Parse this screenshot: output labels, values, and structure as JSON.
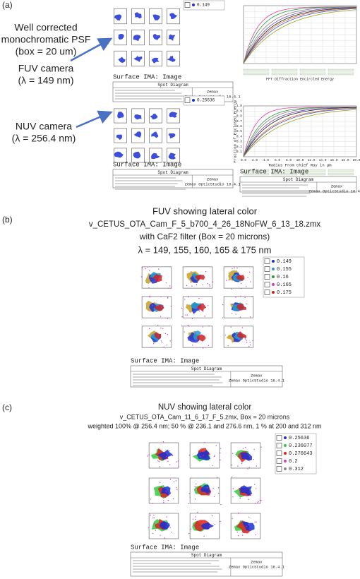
{
  "panel_a": {
    "label": "(a)",
    "psf_note": [
      "Well corrected",
      "monochromatic PSF",
      "(box = 20 um)"
    ],
    "fuv_camera": [
      "FUV camera",
      "(λ = 149 nm)"
    ],
    "nuv_camera": [
      "NUV camera",
      "(λ = 256.4 nm)"
    ],
    "fuv_legend": "0.149",
    "nuv_legend": "0.25636",
    "ee_title": "FFT Diffraction Encircled Energy",
    "ee_ylabel": "Fraction of Enclosed Energy",
    "ee_xlabel": "Radius From Chief Ray in µm",
    "ee_xticks": [
      "0.0",
      "2.0",
      "4.0",
      "6.0",
      "8.0",
      "10.0",
      "12.0",
      "14.0",
      "16.0",
      "18.0",
      "20.0"
    ],
    "ee_yticks": [
      "0.1",
      "0.2",
      "0.3",
      "0.4",
      "0.5",
      "0.6",
      "0.7",
      "0.8",
      "0.9",
      "1.0"
    ],
    "surface": "Surface IMA: Image",
    "spot_title": "Spot Diagram",
    "zemax": "Zemax",
    "version": "Zemax OpticStudio 16.4.1"
  },
  "panel_b": {
    "label": "(b)",
    "title": [
      "FUV showing lateral color",
      "v_CETUS_OTA_Cam_F_5_b700_4_26_18NoFW_6_13_18.zmx",
      "with CaF2 filter (Box = 20 microns)",
      "λ = 149, 155, 160, 165 & 175 nm"
    ],
    "legend": [
      "0.149",
      "0.155",
      "0.16",
      "0.165",
      "0.175"
    ],
    "surface": "Surface IMA: Image",
    "spot_title": "Spot Diagram",
    "zemax": "Zemax",
    "version": "Zemax OpticStudio 16.4.1"
  },
  "panel_c": {
    "label": "(c)",
    "title": [
      "NUV showing lateral color",
      "v_CETUS_OTA_Cam_11_6_17_F_5.zmx, Box = 20 microns",
      "weighted 100% @ 256.4 nm; 50 % @ 236.1 and 276.6 nm, 1 % at 200 and 312 nm"
    ],
    "legend": [
      "0.25636",
      "0.236077",
      "0.276643",
      "0.2",
      "0.312"
    ],
    "surface": "Surface IMA: Image",
    "spot_title": "Spot Diagram",
    "zemax": "Zemax",
    "version": "Zemax OpticStudio 16.4.1"
  }
}
